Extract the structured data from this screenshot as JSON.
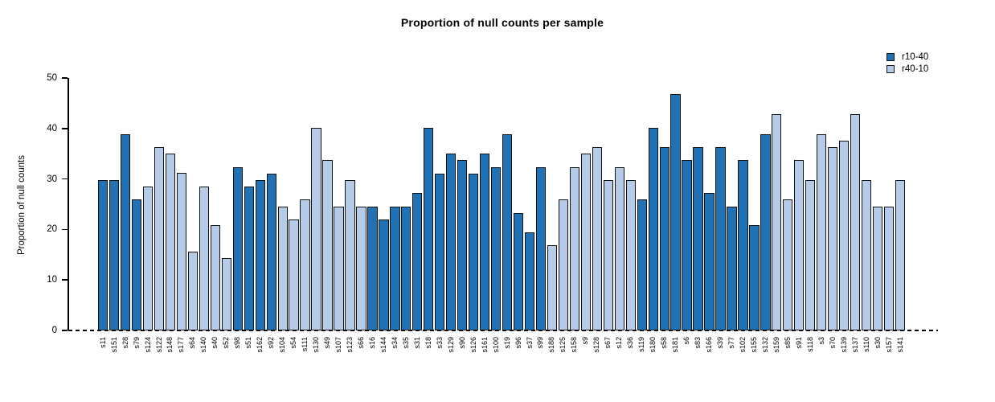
{
  "chart_data": {
    "type": "bar",
    "title": "Proportion of null counts per sample",
    "ylabel": "Proportion of null counts",
    "xlabel": "",
    "ylim": [
      0,
      50
    ],
    "yticks": [
      0,
      10,
      20,
      30,
      40,
      50
    ],
    "grid": false,
    "legend_position": "top-right",
    "zero_line_style": "dashed-black",
    "series": [
      {
        "name": "r10-40",
        "color": "#2171b5"
      },
      {
        "name": "r40-10",
        "color": "#b5cbe8"
      }
    ],
    "bars": [
      {
        "label": "s11",
        "value": 29.8,
        "series": "r10-40"
      },
      {
        "label": "s151",
        "value": 29.8,
        "series": "r10-40"
      },
      {
        "label": "s28",
        "value": 38.9,
        "series": "r10-40"
      },
      {
        "label": "s79",
        "value": 25.9,
        "series": "r10-40"
      },
      {
        "label": "s124",
        "value": 28.5,
        "series": "r40-10"
      },
      {
        "label": "s122",
        "value": 36.3,
        "series": "r40-10"
      },
      {
        "label": "s148",
        "value": 35.0,
        "series": "r40-10"
      },
      {
        "label": "s177",
        "value": 31.2,
        "series": "r40-10"
      },
      {
        "label": "s64",
        "value": 15.6,
        "series": "r40-10"
      },
      {
        "label": "s140",
        "value": 28.5,
        "series": "r40-10"
      },
      {
        "label": "s40",
        "value": 20.8,
        "series": "r40-10"
      },
      {
        "label": "s52",
        "value": 14.3,
        "series": "r40-10"
      },
      {
        "label": "s98",
        "value": 32.4,
        "series": "r10-40"
      },
      {
        "label": "s51",
        "value": 28.5,
        "series": "r10-40"
      },
      {
        "label": "s162",
        "value": 29.8,
        "series": "r10-40"
      },
      {
        "label": "s92",
        "value": 31.1,
        "series": "r10-40"
      },
      {
        "label": "s104",
        "value": 24.6,
        "series": "r40-10"
      },
      {
        "label": "s54",
        "value": 22.0,
        "series": "r40-10"
      },
      {
        "label": "s111",
        "value": 25.9,
        "series": "r40-10"
      },
      {
        "label": "s130",
        "value": 40.1,
        "series": "r40-10"
      },
      {
        "label": "s49",
        "value": 33.7,
        "series": "r40-10"
      },
      {
        "label": "s107",
        "value": 24.5,
        "series": "r40-10"
      },
      {
        "label": "s123",
        "value": 29.8,
        "series": "r40-10"
      },
      {
        "label": "s66",
        "value": 24.5,
        "series": "r40-10"
      },
      {
        "label": "s16",
        "value": 24.5,
        "series": "r10-40"
      },
      {
        "label": "s144",
        "value": 22.0,
        "series": "r10-40"
      },
      {
        "label": "s34",
        "value": 24.5,
        "series": "r10-40"
      },
      {
        "label": "s35",
        "value": 24.5,
        "series": "r10-40"
      },
      {
        "label": "s31",
        "value": 27.2,
        "series": "r10-40"
      },
      {
        "label": "s18",
        "value": 40.1,
        "series": "r10-40"
      },
      {
        "label": "s33",
        "value": 31.1,
        "series": "r10-40"
      },
      {
        "label": "s129",
        "value": 35.0,
        "series": "r10-40"
      },
      {
        "label": "s90",
        "value": 33.7,
        "series": "r10-40"
      },
      {
        "label": "s126",
        "value": 31.1,
        "series": "r10-40"
      },
      {
        "label": "s161",
        "value": 35.0,
        "series": "r10-40"
      },
      {
        "label": "s100",
        "value": 32.4,
        "series": "r10-40"
      },
      {
        "label": "s19",
        "value": 38.9,
        "series": "r10-40"
      },
      {
        "label": "s96",
        "value": 23.2,
        "series": "r10-40"
      },
      {
        "label": "s37",
        "value": 19.5,
        "series": "r10-40"
      },
      {
        "label": "s99",
        "value": 32.4,
        "series": "r10-40"
      },
      {
        "label": "s188",
        "value": 16.8,
        "series": "r40-10"
      },
      {
        "label": "s125",
        "value": 25.9,
        "series": "r40-10"
      },
      {
        "label": "s158",
        "value": 32.4,
        "series": "r40-10"
      },
      {
        "label": "s9",
        "value": 35.0,
        "series": "r40-10"
      },
      {
        "label": "s128",
        "value": 36.3,
        "series": "r40-10"
      },
      {
        "label": "s67",
        "value": 29.8,
        "series": "r40-10"
      },
      {
        "label": "s12",
        "value": 32.4,
        "series": "r40-10"
      },
      {
        "label": "s36",
        "value": 29.8,
        "series": "r40-10"
      },
      {
        "label": "s119",
        "value": 25.9,
        "series": "r10-40"
      },
      {
        "label": "s180",
        "value": 40.1,
        "series": "r10-40"
      },
      {
        "label": "s58",
        "value": 36.3,
        "series": "r10-40"
      },
      {
        "label": "s181",
        "value": 46.8,
        "series": "r10-40"
      },
      {
        "label": "s6",
        "value": 33.7,
        "series": "r10-40"
      },
      {
        "label": "s83",
        "value": 36.3,
        "series": "r10-40"
      },
      {
        "label": "s166",
        "value": 27.2,
        "series": "r10-40"
      },
      {
        "label": "s39",
        "value": 36.3,
        "series": "r10-40"
      },
      {
        "label": "s77",
        "value": 24.5,
        "series": "r10-40"
      },
      {
        "label": "s102",
        "value": 33.7,
        "series": "r10-40"
      },
      {
        "label": "s155",
        "value": 20.8,
        "series": "r10-40"
      },
      {
        "label": "s132",
        "value": 38.9,
        "series": "r10-40"
      },
      {
        "label": "s159",
        "value": 42.8,
        "series": "r40-10"
      },
      {
        "label": "s85",
        "value": 25.9,
        "series": "r40-10"
      },
      {
        "label": "s91",
        "value": 33.7,
        "series": "r40-10"
      },
      {
        "label": "s118",
        "value": 29.8,
        "series": "r40-10"
      },
      {
        "label": "s3",
        "value": 38.9,
        "series": "r40-10"
      },
      {
        "label": "s70",
        "value": 36.3,
        "series": "r40-10"
      },
      {
        "label": "s139",
        "value": 37.6,
        "series": "r40-10"
      },
      {
        "label": "s137",
        "value": 42.8,
        "series": "r40-10"
      },
      {
        "label": "s110",
        "value": 29.8,
        "series": "r40-10"
      },
      {
        "label": "s30",
        "value": 24.5,
        "series": "r40-10"
      },
      {
        "label": "s157",
        "value": 24.5,
        "series": "r40-10"
      },
      {
        "label": "s141",
        "value": 29.8,
        "series": "r40-10"
      }
    ]
  }
}
